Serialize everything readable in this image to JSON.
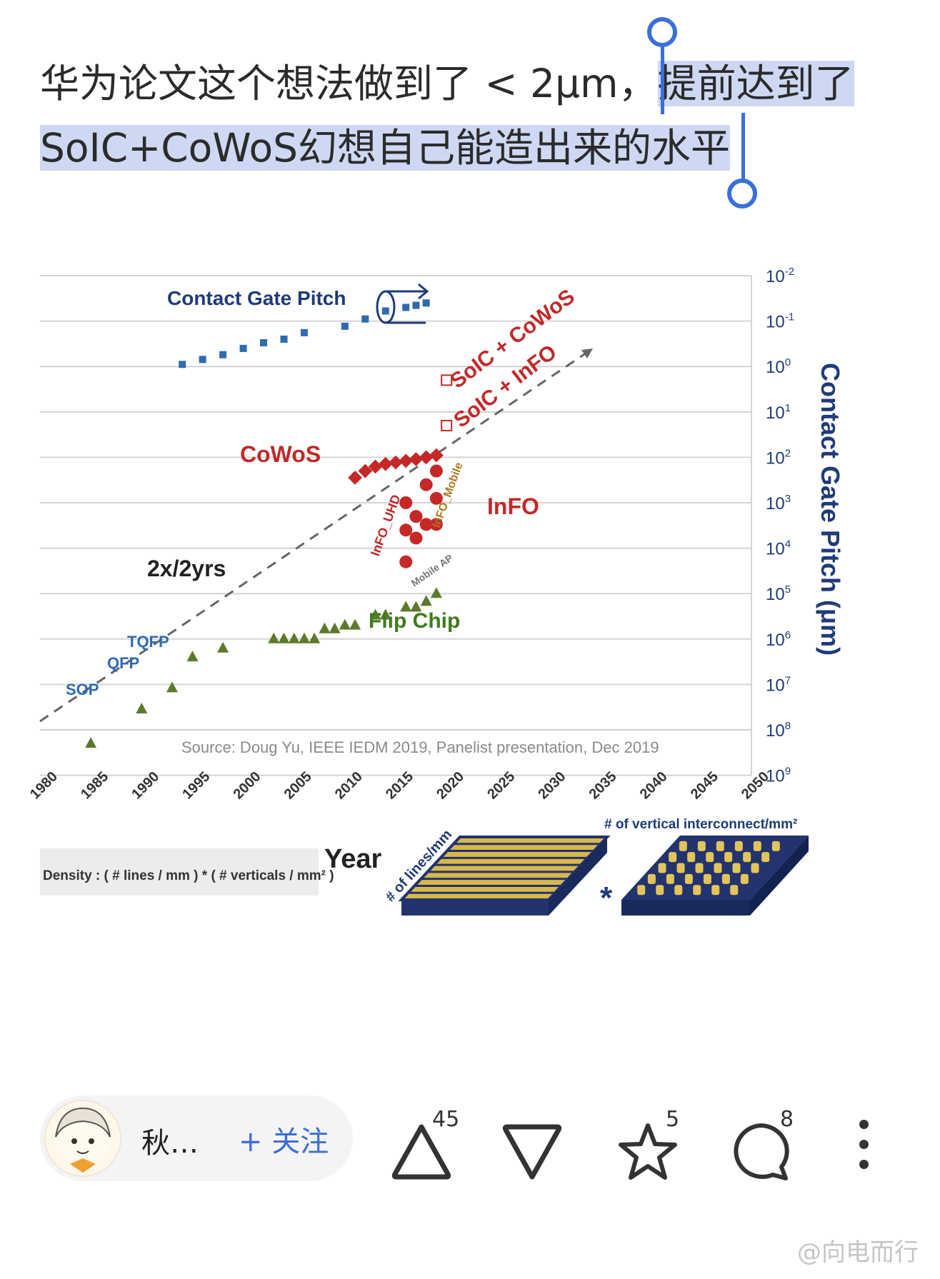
{
  "post": {
    "text_plain": "华为论文这个想法做到了 < 2μm，",
    "text_selected_1": "提前达到了",
    "text_selected_2": "SoIC+CoWoS幻想自己能造出来的水平"
  },
  "figure": {
    "contact_gate_pitch_label": "Contact Gate Pitch",
    "soic_cowos_label": "SoIC + CoWoS",
    "soic_info_label": "SoIC + InFO",
    "cowos_label": "CoWoS",
    "info_label": "InFO",
    "info_uhd_label": "InFO_UHD",
    "info_mobile_label": "InFO_Mobile",
    "mobile_ap_label": "Mobile AP",
    "trend_label": "2x/2yrs",
    "flip_chip_label": "Flip Chip",
    "tqfp_label": "TQFP",
    "qfp_label": "QFP",
    "sop_label": "SOP",
    "source_note": "Source: Doug Yu, IEEE IEDM 2019, Panelist presentation, Dec 2019",
    "right_axis_label": "Contact Gate Pitch (μm)",
    "x_axis_label": "Year",
    "density_formula": "Density : ( # lines / mm ) * ( # verticals / mm² )",
    "lines_per_mm_label": "# of lines/mm",
    "multiply_symbol": "*",
    "vertical_interconnect_label": "# of vertical interconnect/mm²"
  },
  "chart_data": {
    "type": "scatter",
    "title": "",
    "xlabel": "Year",
    "ylabel": "Contact Gate Pitch (μm)",
    "x_ticks": [
      "1980",
      "1985",
      "1990",
      "1995",
      "2000",
      "2005",
      "2010",
      "2015",
      "2020",
      "2025",
      "2030",
      "2035",
      "2040",
      "2045",
      "2050"
    ],
    "y_ticks": [
      "10-2",
      "10-1",
      "100",
      "101",
      "102",
      "103",
      "104",
      "105",
      "106",
      "107",
      "108",
      "109"
    ],
    "xlim": [
      1980,
      2050
    ],
    "y_log_scale": true,
    "grid": true,
    "series": [
      {
        "name": "Contact Gate Pitch",
        "points": [
          [
            1994,
            0.9
          ],
          [
            1996,
            0.7
          ],
          [
            1998,
            0.55
          ],
          [
            2000,
            0.4
          ],
          [
            2002,
            0.3
          ],
          [
            2004,
            0.25
          ],
          [
            2006,
            0.18
          ],
          [
            2010,
            0.13
          ],
          [
            2012,
            0.09
          ],
          [
            2014,
            0.06
          ],
          [
            2016,
            0.05
          ],
          [
            2017,
            0.045
          ],
          [
            2018,
            0.04
          ]
        ]
      },
      {
        "name": "Flip Chip",
        "points": [
          [
            1985,
            200000000
          ],
          [
            1990,
            35000000
          ],
          [
            1993,
            12000000
          ],
          [
            1995,
            2500000
          ],
          [
            1998,
            1600000
          ],
          [
            2003,
            1000000
          ],
          [
            2004,
            1000000
          ],
          [
            2005,
            1000000
          ],
          [
            2006,
            1000000
          ],
          [
            2007,
            1000000
          ],
          [
            2008,
            600000
          ],
          [
            2009,
            600000
          ],
          [
            2010,
            500000
          ],
          [
            2011,
            500000
          ],
          [
            2013,
            300000
          ],
          [
            2014,
            300000
          ],
          [
            2016,
            200000
          ],
          [
            2017,
            200000
          ],
          [
            2018,
            150000
          ],
          [
            2019,
            100000
          ]
        ]
      },
      {
        "name": "CoWoS",
        "points": [
          [
            2011,
            280
          ],
          [
            2012,
            200
          ],
          [
            2013,
            160
          ],
          [
            2014,
            140
          ],
          [
            2015,
            130
          ],
          [
            2016,
            120
          ],
          [
            2017,
            110
          ],
          [
            2018,
            100
          ],
          [
            2019,
            90
          ]
        ]
      },
      {
        "name": "InFO",
        "points": [
          [
            2016,
            1000
          ],
          [
            2016,
            4000
          ],
          [
            2016,
            20000
          ],
          [
            2017,
            6000
          ],
          [
            2017,
            2000
          ],
          [
            2018,
            400
          ],
          [
            2018,
            3000
          ],
          [
            2019,
            800
          ],
          [
            2019,
            200
          ],
          [
            2019,
            3000
          ]
        ]
      },
      {
        "name": "SoIC + InFO",
        "points": [
          [
            2020,
            20
          ]
        ]
      },
      {
        "name": "SoIC + CoWoS",
        "points": [
          [
            2020,
            2
          ]
        ]
      }
    ]
  },
  "actions": {
    "author_name": "秋…",
    "follow_label": "+ 关注",
    "upvote_count": "45",
    "favorite_count": "5",
    "comment_count": "8"
  },
  "watermark": "@向电而行"
}
